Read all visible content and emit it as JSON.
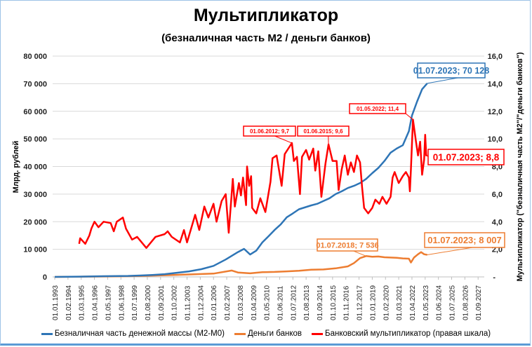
{
  "chart_data": {
    "type": "line",
    "title": "Мультипликатор",
    "subtitle": "(безналичная часть М2 / деньги банков)",
    "ylabel": "Млрд. рублей",
    "y2label": "Мультипликатор (\"безналичная часть М2\"/\"деньги банков\")",
    "ylim": [
      0,
      80000
    ],
    "y2lim": [
      0,
      16
    ],
    "yticks": [
      "0",
      "10 000",
      "20 000",
      "30 000",
      "40 000",
      "50 000",
      "60 000",
      "70 000",
      "80 000"
    ],
    "y2ticks": [
      "-",
      "2,0",
      "4,0",
      "6,0",
      "8,0",
      "10,0",
      "12,0",
      "14,0",
      "16,0"
    ],
    "xticks": [
      "01.01.1993",
      "01.02.1994",
      "01.03.1995",
      "01.04.1996",
      "01.05.1997",
      "01.06.1998",
      "01.07.1999",
      "01.08.2000",
      "01.09.2001",
      "01.10.2002",
      "01.11.2003",
      "01.12.2004",
      "01.01.2006",
      "01.02.2007",
      "01.03.2008",
      "01.04.2009",
      "01.05.2010",
      "01.06.2011",
      "01.07.2012",
      "01.08.2013",
      "01.09.2014",
      "01.10.2015",
      "01.11.2016",
      "01.12.2017",
      "01.01.2019",
      "01.02.2020",
      "01.03.2021",
      "01.04.2022",
      "01.05.2023",
      "01.06.2024",
      "01.07.2025",
      "01.08.2026",
      "01.09.2027"
    ],
    "grid": true,
    "legend_position": "bottom",
    "series": [
      {
        "name": "Безналичная часть денежной массы (М2-М0)",
        "axis": "left",
        "color": "#2e75b6",
        "points": [
          [
            "1993-01",
            0
          ],
          [
            "1995-01",
            100
          ],
          [
            "1997-01",
            250
          ],
          [
            "1999-01",
            350
          ],
          [
            "2000-01",
            500
          ],
          [
            "2001-01",
            700
          ],
          [
            "2002-01",
            1000
          ],
          [
            "2003-01",
            1500
          ],
          [
            "2004-01",
            2000
          ],
          [
            "2005-01",
            2800
          ],
          [
            "2006-01",
            4000
          ],
          [
            "2007-01",
            6300
          ],
          [
            "2008-01",
            9000
          ],
          [
            "2008-07",
            10150
          ],
          [
            "2009-01",
            8100
          ],
          [
            "2009-07",
            9500
          ],
          [
            "2010-01",
            12500
          ],
          [
            "2010-07",
            14700
          ],
          [
            "2011-01",
            17000
          ],
          [
            "2011-07",
            19000
          ],
          [
            "2012-01",
            21600
          ],
          [
            "2012-07",
            23000
          ],
          [
            "2013-01",
            24500
          ],
          [
            "2014-01",
            25900
          ],
          [
            "2014-07",
            26500
          ],
          [
            "2015-01",
            27500
          ],
          [
            "2015-07",
            28500
          ],
          [
            "2016-01",
            30000
          ],
          [
            "2016-07",
            31000
          ],
          [
            "2017-01",
            32200
          ],
          [
            "2017-07",
            33000
          ],
          [
            "2018-01",
            34000
          ],
          [
            "2018-07",
            35500
          ],
          [
            "2019-01",
            37600
          ],
          [
            "2019-07",
            39500
          ],
          [
            "2020-01",
            42000
          ],
          [
            "2020-07",
            45000
          ],
          [
            "2021-01",
            46500
          ],
          [
            "2021-07",
            47700
          ],
          [
            "2022-01",
            52800
          ],
          [
            "2022-04",
            58400
          ],
          [
            "2022-09",
            63500
          ],
          [
            "2023-02",
            68000
          ],
          [
            "2023-07",
            70128
          ]
        ]
      },
      {
        "name": "Деньги банков",
        "axis": "left",
        "color": "#ed7d31",
        "points": [
          [
            "1993-01",
            0
          ],
          [
            "1995-01",
            80
          ],
          [
            "1998-01",
            200
          ],
          [
            "2000-01",
            350
          ],
          [
            "2002-01",
            600
          ],
          [
            "2004-01",
            900
          ],
          [
            "2006-01",
            1200
          ],
          [
            "2007-07",
            2300
          ],
          [
            "2008-01",
            1600
          ],
          [
            "2009-01",
            1300
          ],
          [
            "2010-01",
            1700
          ],
          [
            "2011-01",
            1800
          ],
          [
            "2012-01",
            2000
          ],
          [
            "2013-01",
            2200
          ],
          [
            "2014-01",
            2600
          ],
          [
            "2015-01",
            2700
          ],
          [
            "2016-01",
            3100
          ],
          [
            "2017-01",
            3800
          ],
          [
            "2017-07",
            5000
          ],
          [
            "2018-01",
            6800
          ],
          [
            "2018-07",
            7536
          ],
          [
            "2019-01",
            7300
          ],
          [
            "2019-07",
            7400
          ],
          [
            "2020-01",
            7100
          ],
          [
            "2020-07",
            7000
          ],
          [
            "2021-01",
            6900
          ],
          [
            "2021-07",
            6700
          ],
          [
            "2022-01",
            6600
          ],
          [
            "2022-03",
            5200
          ],
          [
            "2022-06",
            7000
          ],
          [
            "2022-10",
            8200
          ],
          [
            "2023-01",
            9000
          ],
          [
            "2023-04",
            8200
          ],
          [
            "2023-07",
            8007
          ]
        ]
      },
      {
        "name": "Банковский мультипликатор (правая шкала)",
        "axis": "right",
        "color": "#ff0000",
        "points": [
          [
            "1995-01",
            2.4
          ],
          [
            "1995-02",
            2.8
          ],
          [
            "1995-07",
            2.4
          ],
          [
            "1995-11",
            3.0
          ],
          [
            "1996-01",
            3.5
          ],
          [
            "1996-04",
            4.0
          ],
          [
            "1996-08",
            3.6
          ],
          [
            "1997-01",
            4.0
          ],
          [
            "1997-08",
            3.9
          ],
          [
            "1997-11",
            3.3
          ],
          [
            "1998-02",
            4.0
          ],
          [
            "1998-08",
            4.3
          ],
          [
            "1998-11",
            3.5
          ],
          [
            "1999-05",
            2.7
          ],
          [
            "1999-10",
            2.9
          ],
          [
            "2000-07",
            2.1
          ],
          [
            "2001-04",
            2.9
          ],
          [
            "2002-01",
            3.1
          ],
          [
            "2002-04",
            3.3
          ],
          [
            "2002-08",
            2.9
          ],
          [
            "2003-04",
            2.5
          ],
          [
            "2003-08",
            3.4
          ],
          [
            "2003-11",
            2.5
          ],
          [
            "2004-07",
            4.5
          ],
          [
            "2004-11",
            3.4
          ],
          [
            "2005-04",
            5.1
          ],
          [
            "2005-08",
            4.3
          ],
          [
            "2006-01",
            5.3
          ],
          [
            "2006-04",
            4.0
          ],
          [
            "2006-09",
            5.5
          ],
          [
            "2007-01",
            6.0
          ],
          [
            "2007-04",
            3.2
          ],
          [
            "2007-08",
            7.1
          ],
          [
            "2007-10",
            5.1
          ],
          [
            "2008-02",
            6.8
          ],
          [
            "2008-04",
            5.9
          ],
          [
            "2008-06",
            7.2
          ],
          [
            "2008-09",
            5.2
          ],
          [
            "2008-10",
            8.0
          ],
          [
            "2008-12",
            6.6
          ],
          [
            "2009-02",
            7.3
          ],
          [
            "2009-03",
            5.0
          ],
          [
            "2009-07",
            4.6
          ],
          [
            "2009-11",
            5.7
          ],
          [
            "2010-04",
            4.7
          ],
          [
            "2010-09",
            6.9
          ],
          [
            "2010-11",
            8.6
          ],
          [
            "2011-03",
            8.8
          ],
          [
            "2011-08",
            6.6
          ],
          [
            "2011-11",
            8.9
          ],
          [
            "2012-06",
            9.7
          ],
          [
            "2012-08",
            8.4
          ],
          [
            "2012-11",
            8.7
          ],
          [
            "2013-02",
            6.0
          ],
          [
            "2013-04",
            8.7
          ],
          [
            "2013-08",
            9.2
          ],
          [
            "2013-11",
            8.5
          ],
          [
            "2014-03",
            9.3
          ],
          [
            "2014-05",
            7.7
          ],
          [
            "2014-08",
            9.1
          ],
          [
            "2014-11",
            5.8
          ],
          [
            "2015-03",
            8.2
          ],
          [
            "2015-06",
            9.6
          ],
          [
            "2015-10",
            8.4
          ],
          [
            "2016-02",
            8.4
          ],
          [
            "2016-04",
            6.3
          ],
          [
            "2016-07",
            7.8
          ],
          [
            "2016-10",
            8.8
          ],
          [
            "2017-01",
            7.4
          ],
          [
            "2017-04",
            8.3
          ],
          [
            "2017-07",
            7.6
          ],
          [
            "2017-10",
            8.8
          ],
          [
            "2018-01",
            8.3
          ],
          [
            "2018-03",
            6.5
          ],
          [
            "2018-05",
            5.0
          ],
          [
            "2018-09",
            4.6
          ],
          [
            "2019-01",
            5.0
          ],
          [
            "2019-04",
            5.6
          ],
          [
            "2019-08",
            5.3
          ],
          [
            "2019-11",
            5.8
          ],
          [
            "2020-03",
            5.3
          ],
          [
            "2020-07",
            5.8
          ],
          [
            "2020-09",
            7.2
          ],
          [
            "2020-11",
            7.6
          ],
          [
            "2021-03",
            6.8
          ],
          [
            "2021-07",
            7.3
          ],
          [
            "2021-10",
            7.6
          ],
          [
            "2022-01",
            7.2
          ],
          [
            "2022-02",
            6.2
          ],
          [
            "2022-03",
            7.8
          ],
          [
            "2022-05",
            11.4
          ],
          [
            "2022-08",
            9.8
          ],
          [
            "2022-10",
            8.8
          ],
          [
            "2022-12",
            9.8
          ],
          [
            "2023-02",
            7.4
          ],
          [
            "2023-04",
            8.5
          ],
          [
            "2023-05",
            10.3
          ],
          [
            "2023-06",
            8.8
          ],
          [
            "2023-07",
            8.8
          ]
        ]
      }
    ],
    "annotations": [
      {
        "text": "01.07.2023; 70 128",
        "date": "2023-07",
        "value": 70128,
        "axis": "left",
        "color": "#2e75b6"
      },
      {
        "text": "01.06.2012;  9,7",
        "date": "2012-06",
        "value": 9.7,
        "axis": "right",
        "color": "#ff0000"
      },
      {
        "text": "01.06.2015;  9,6",
        "date": "2015-06",
        "value": 9.6,
        "axis": "right",
        "color": "#ff0000"
      },
      {
        "text": "01.05.2022;  11,4",
        "date": "2022-05",
        "value": 11.4,
        "axis": "right",
        "color": "#ff0000"
      },
      {
        "text": "01.07.2023;   8,8",
        "date": "2023-07",
        "value": 8.8,
        "axis": "right",
        "color": "#ff0000"
      },
      {
        "text": "01.07.2018; 7 536",
        "date": "2018-07",
        "value": 7536,
        "axis": "left",
        "color": "#ed7d31"
      },
      {
        "text": "01.07.2023; 8 007",
        "date": "2023-07",
        "value": 8007,
        "axis": "left",
        "color": "#ed7d31"
      }
    ]
  }
}
